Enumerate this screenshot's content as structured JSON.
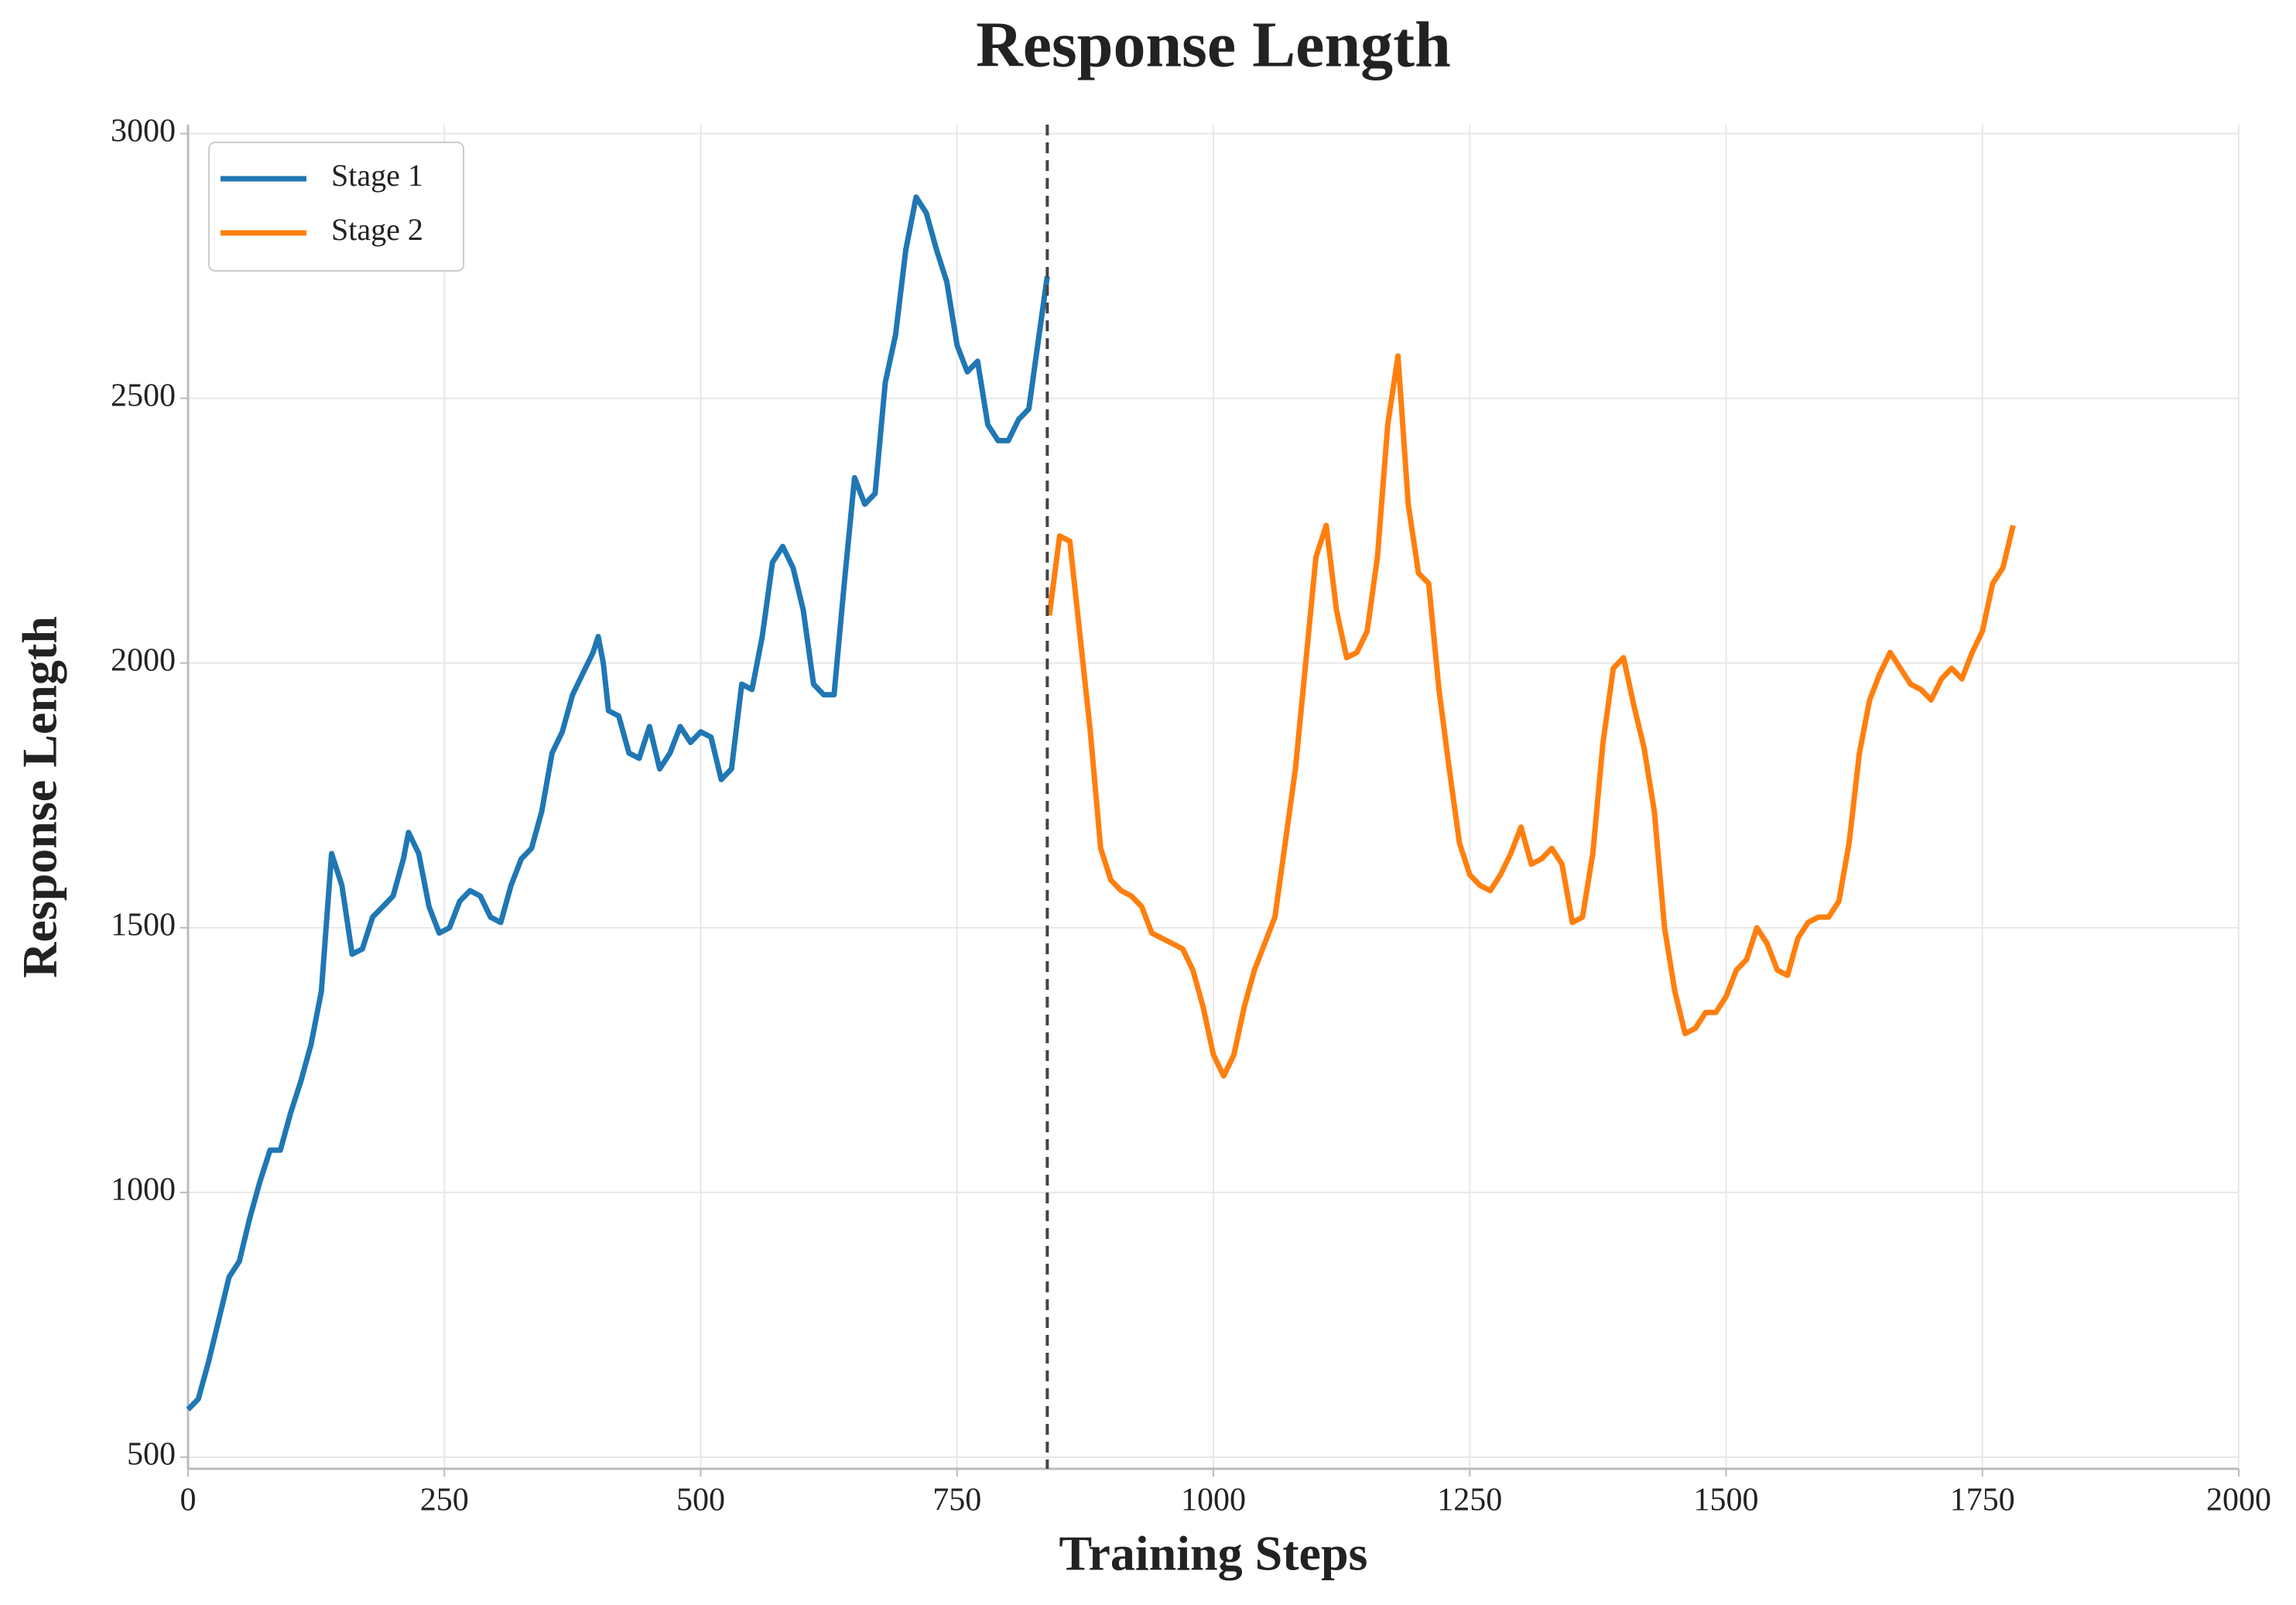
{
  "chart_data": {
    "type": "line",
    "title": "Response Length",
    "xlabel": "Training Steps",
    "ylabel": "Response Length",
    "xlim": [
      0,
      2000
    ],
    "xticks": [
      0,
      250,
      500,
      750,
      1000,
      1250,
      1500,
      1750,
      2000
    ],
    "ylim": [
      478,
      3017
    ],
    "yticks": [
      500,
      1000,
      1500,
      2000,
      2500,
      3000
    ],
    "grid": true,
    "legend": "upper left",
    "vline": 838,
    "series": [
      {
        "name": "Stage 1",
        "color": "#1f77b4",
        "x": [
          0,
          10,
          20,
          30,
          40,
          50,
          60,
          70,
          80,
          90,
          100,
          110,
          120,
          130,
          140,
          150,
          160,
          170,
          180,
          190,
          200,
          210,
          215,
          225,
          235,
          245,
          255,
          265,
          275,
          285,
          295,
          305,
          315,
          325,
          335,
          345,
          355,
          365,
          375,
          385,
          395,
          400,
          405,
          410,
          420,
          430,
          440,
          450,
          460,
          470,
          480,
          490,
          500,
          510,
          520,
          530,
          540,
          550,
          560,
          570,
          580,
          590,
          600,
          610,
          620,
          630,
          640,
          650,
          660,
          670,
          680,
          690,
          700,
          710,
          720,
          730,
          740,
          750,
          760,
          770,
          780,
          790,
          800,
          810,
          820,
          830,
          838
        ],
        "values": [
          590,
          610,
          680,
          760,
          840,
          870,
          950,
          1020,
          1080,
          1080,
          1150,
          1210,
          1280,
          1380,
          1640,
          1580,
          1450,
          1460,
          1520,
          1540,
          1560,
          1630,
          1680,
          1640,
          1540,
          1490,
          1500,
          1550,
          1570,
          1560,
          1520,
          1510,
          1580,
          1630,
          1650,
          1720,
          1830,
          1870,
          1940,
          1980,
          2020,
          2050,
          2000,
          1910,
          1900,
          1830,
          1820,
          1880,
          1800,
          1830,
          1880,
          1850,
          1870,
          1860,
          1780,
          1800,
          1960,
          1950,
          2050,
          2190,
          2220,
          2180,
          2100,
          1960,
          1940,
          1940,
          2150,
          2350,
          2300,
          2320,
          2530,
          2620,
          2780,
          2880,
          2850,
          2780,
          2720,
          2600,
          2550,
          2570,
          2450,
          2420,
          2420,
          2460,
          2480,
          2620,
          2730
        ]
      },
      {
        "name": "Stage 2",
        "color": "#ff7f0e",
        "x": [
          840,
          850,
          860,
          870,
          880,
          890,
          900,
          910,
          920,
          930,
          940,
          950,
          960,
          970,
          980,
          990,
          1000,
          1010,
          1020,
          1030,
          1040,
          1050,
          1060,
          1070,
          1080,
          1090,
          1100,
          1110,
          1120,
          1130,
          1140,
          1150,
          1160,
          1170,
          1180,
          1190,
          1200,
          1210,
          1220,
          1230,
          1240,
          1250,
          1260,
          1270,
          1280,
          1290,
          1300,
          1310,
          1320,
          1330,
          1340,
          1350,
          1360,
          1370,
          1380,
          1390,
          1400,
          1410,
          1420,
          1430,
          1440,
          1450,
          1460,
          1470,
          1480,
          1490,
          1500,
          1510,
          1520,
          1530,
          1540,
          1550,
          1560,
          1570,
          1580,
          1590,
          1600,
          1610,
          1620,
          1630,
          1640,
          1650,
          1660,
          1670,
          1680,
          1690,
          1700,
          1710,
          1720,
          1730,
          1740,
          1750,
          1760,
          1770,
          1780
        ],
        "values": [
          2090,
          2240,
          2230,
          2050,
          1870,
          1650,
          1590,
          1570,
          1560,
          1540,
          1490,
          1480,
          1470,
          1460,
          1420,
          1350,
          1260,
          1220,
          1260,
          1350,
          1420,
          1470,
          1520,
          1660,
          1800,
          2000,
          2200,
          2260,
          2100,
          2010,
          2020,
          2060,
          2200,
          2450,
          2580,
          2300,
          2170,
          2150,
          1950,
          1800,
          1660,
          1600,
          1580,
          1570,
          1600,
          1640,
          1690,
          1620,
          1630,
          1650,
          1620,
          1510,
          1520,
          1640,
          1850,
          1990,
          2010,
          1920,
          1840,
          1720,
          1500,
          1380,
          1300,
          1310,
          1340,
          1340,
          1370,
          1420,
          1440,
          1500,
          1470,
          1420,
          1410,
          1480,
          1510,
          1520,
          1520,
          1550,
          1660,
          1830,
          1930,
          1980,
          2020,
          1990,
          1960,
          1950,
          1930,
          1970,
          1990,
          1970,
          2020,
          2060,
          2150,
          2180,
          2260
        ]
      }
    ]
  }
}
